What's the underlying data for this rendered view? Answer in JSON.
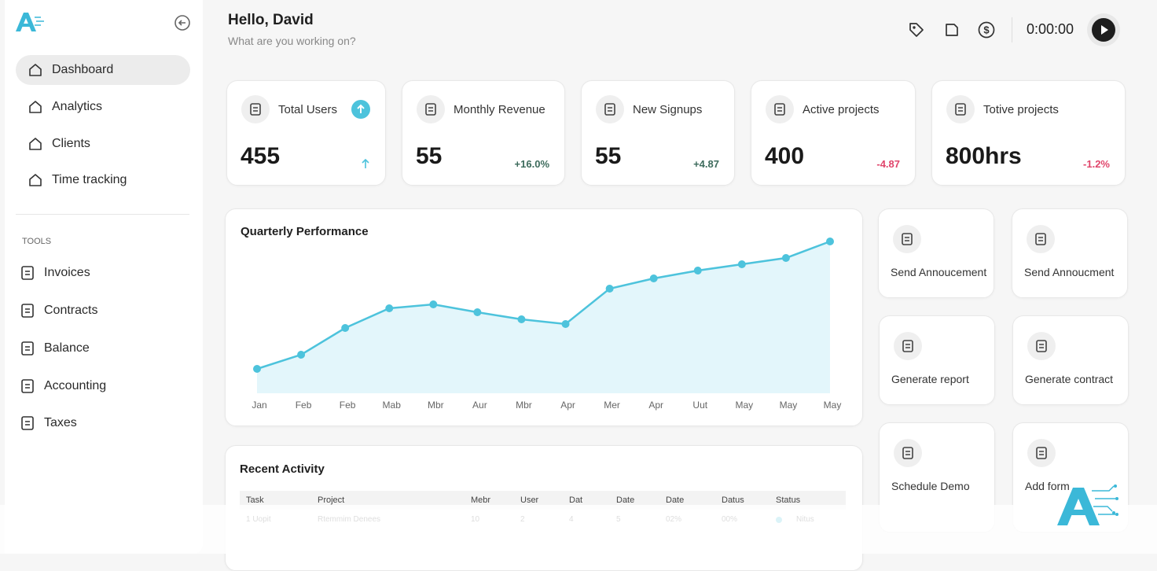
{
  "logo": "A",
  "sidebar": {
    "nav": [
      "Dashboard",
      "Analytics",
      "Clients",
      "Time tracking"
    ],
    "section": "TOOLS",
    "tools": [
      "Invoices",
      "Contracts",
      "Balance",
      "Accounting",
      "Taxes"
    ]
  },
  "header": {
    "title": "Hello, David",
    "subtitle": "What are you working on?",
    "timer": "0:00:00"
  },
  "stats": [
    {
      "label": "Total Users",
      "value": "455"
    },
    {
      "label": "Monthly Revenue",
      "value": "55",
      "change": "+16.0%"
    },
    {
      "label": "New Signups",
      "value": "55",
      "change": "+4.87"
    },
    {
      "label": "Active projects",
      "value": "400",
      "change": "-4.87"
    },
    {
      "label": "Totive projects",
      "value": "800hrs",
      "change": "-1.2%"
    }
  ],
  "chart_data": {
    "type": "area",
    "title": "Quarterly Performance",
    "categories": [
      "Jan",
      "Feb",
      "Feb",
      "Mab",
      "Mbr",
      "Aur",
      "Mbr",
      "Apr",
      "Mer",
      "Apr",
      "Uut",
      "May",
      "May",
      "May"
    ],
    "values": [
      31,
      49,
      83,
      108,
      113,
      103,
      94,
      88,
      133,
      146,
      156,
      164,
      172,
      193
    ],
    "ylim": [
      0,
      200
    ],
    "color": "#4dc3dc"
  },
  "actions": [
    "Send Annoucement",
    "Send Annoucment",
    "Generate report",
    "Generate contract",
    "Schedule Demo",
    "Add form"
  ],
  "activity": {
    "title": "Recent Activity",
    "columns": [
      "Task",
      "Project",
      "Mebr",
      "User",
      "Dat",
      "Date",
      "Date",
      "Datus",
      "Status"
    ],
    "rows": [
      [
        "1   Uopit",
        "Rtemmim Denees",
        "10",
        "2",
        "4",
        "5",
        "02%",
        "00%",
        "Nitus"
      ]
    ]
  }
}
